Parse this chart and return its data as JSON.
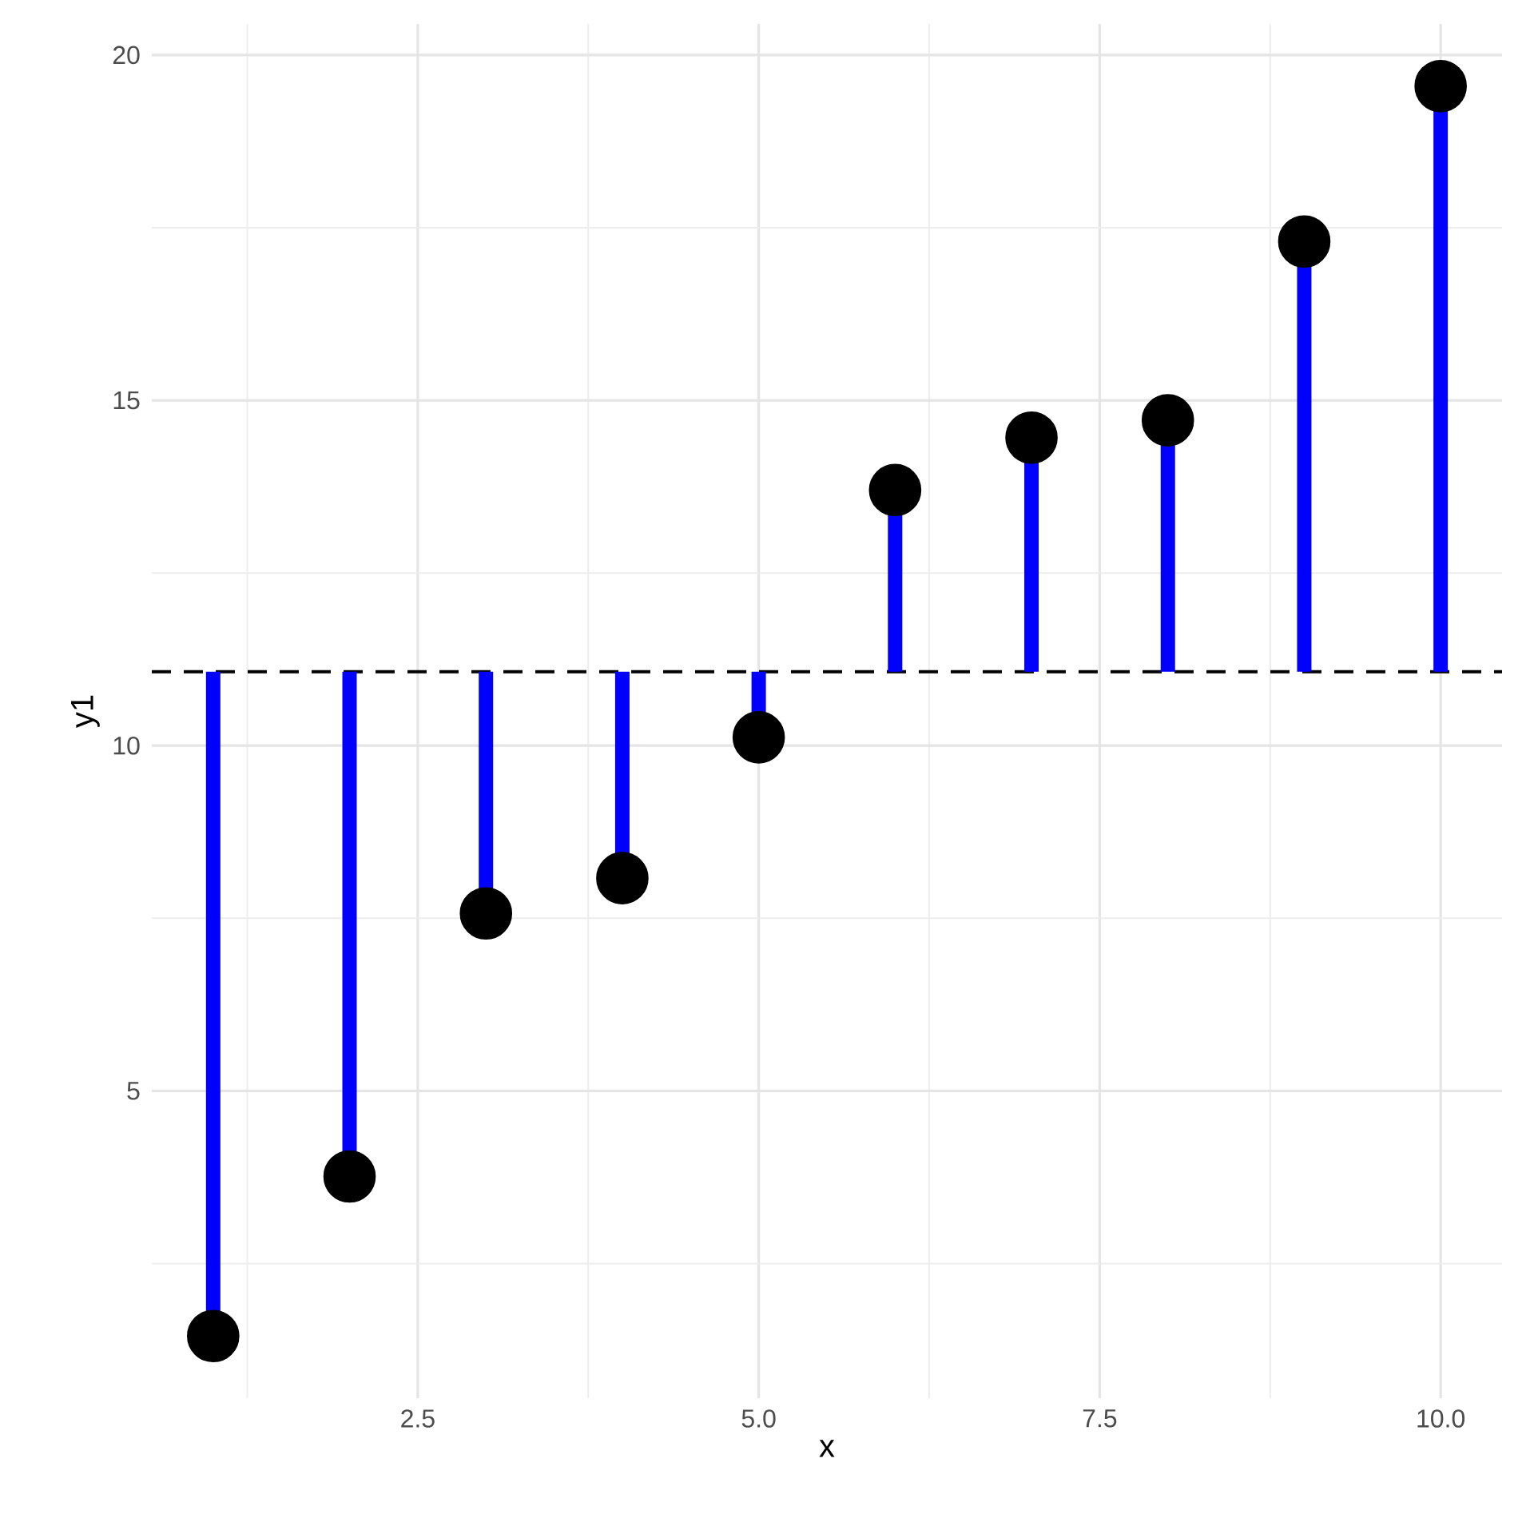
{
  "chart_data": {
    "type": "lollipop",
    "xlabel": "x",
    "ylabel": "y1",
    "x": [
      1,
      2,
      3,
      4,
      5,
      6,
      7,
      8,
      9,
      10
    ],
    "values": [
      1.45,
      3.76,
      7.57,
      8.08,
      10.12,
      13.7,
      14.46,
      14.71,
      17.3,
      19.55
    ],
    "errors": [
      [
        1.45,
        11.07
      ],
      [
        3.76,
        11.07
      ],
      [
        7.57,
        11.07
      ],
      [
        8.08,
        11.07
      ],
      [
        10.12,
        11.07
      ],
      [
        11.07,
        13.7
      ],
      [
        11.07,
        14.46
      ],
      [
        11.07,
        14.71
      ],
      [
        11.07,
        17.3
      ],
      [
        11.07,
        19.55
      ]
    ],
    "color": "#000000",
    "marker": "circle",
    "grid": true,
    "ref_lines": [
      {
        "axis": "y",
        "value": 11.07,
        "color": "#000000",
        "line_style": "dashed"
      }
    ],
    "xlim": [
      0.55,
      10.45
    ],
    "ylim": [
      0.55,
      20.45
    ],
    "xticks": [
      {
        "value": 1.25,
        "label": null
      },
      2.5,
      {
        "value": 3.75,
        "label": null
      },
      {
        "value": 5,
        "label": "5.0"
      },
      {
        "value": 6.25,
        "label": null
      },
      7.5,
      {
        "value": 8.75,
        "label": null
      },
      {
        "value": 10,
        "label": "10.0"
      }
    ],
    "yticks": [
      {
        "value": 2.5,
        "label": null
      },
      5,
      {
        "value": 7.5,
        "label": null
      },
      10,
      {
        "value": 12.5,
        "label": null
      },
      15,
      {
        "value": 17.5,
        "label": null
      },
      20
    ]
  }
}
